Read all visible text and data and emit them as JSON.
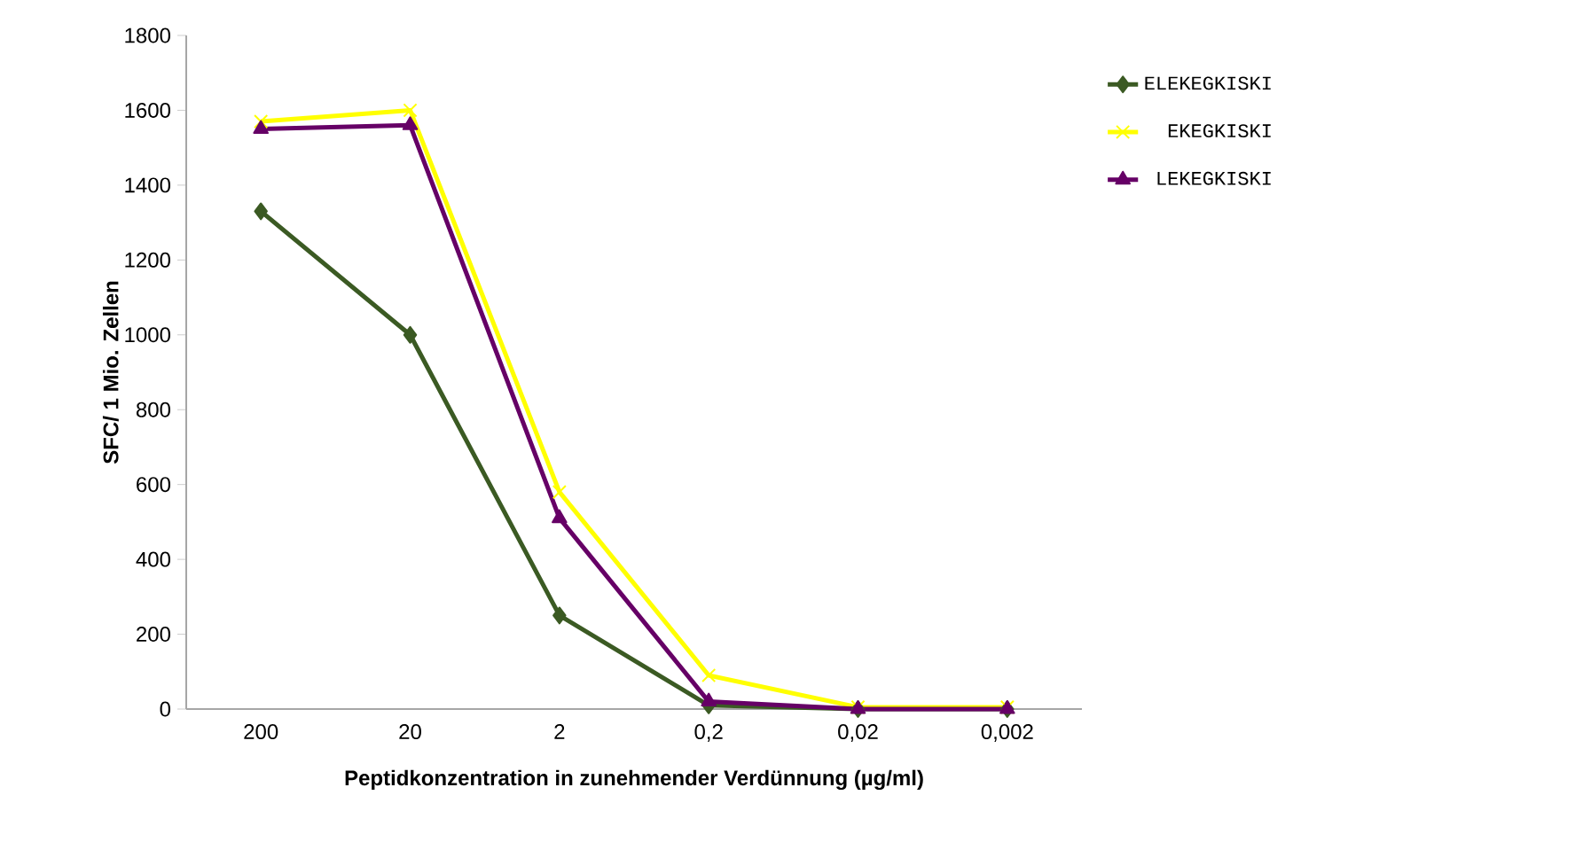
{
  "chart_data": {
    "type": "line",
    "xlabel": "Peptidkonzentration in zunehmender Verdünnung (µg/ml)",
    "ylabel": "SFC/ 1 Mio. Zellen",
    "categories": [
      "200",
      "20",
      "2",
      "0,2",
      "0,02",
      "0,002"
    ],
    "series": [
      {
        "name": "ELEKEGKISKI",
        "color": "#3b5a23",
        "marker": "diamond",
        "values": [
          1330,
          1000,
          250,
          10,
          0,
          0
        ]
      },
      {
        "name": "EKEGKISKI",
        "color": "#ffff00",
        "marker": "cross",
        "values": [
          1570,
          1600,
          580,
          90,
          5,
          5
        ]
      },
      {
        "name": "LEKEGKISKI",
        "color": "#660066",
        "marker": "triangle",
        "values": [
          1550,
          1560,
          510,
          20,
          0,
          0
        ]
      }
    ],
    "ylim": [
      0,
      1800
    ],
    "yticks": [
      0,
      200,
      400,
      600,
      800,
      1000,
      1200,
      1400,
      1600,
      1800
    ],
    "grid": false,
    "legend": "right",
    "line_style": "solid"
  }
}
